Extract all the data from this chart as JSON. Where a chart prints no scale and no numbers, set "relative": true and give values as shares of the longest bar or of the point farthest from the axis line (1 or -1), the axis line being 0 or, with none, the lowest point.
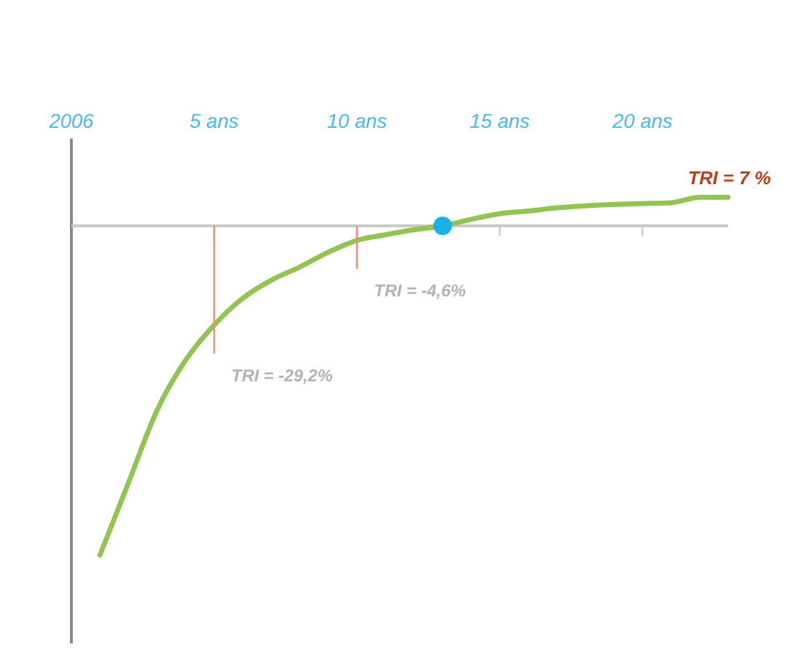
{
  "chart_data": {
    "type": "line",
    "relative": true,
    "categories": [
      "2006",
      null,
      null,
      null,
      null,
      "5 ans",
      null,
      null,
      null,
      null,
      "10 ans",
      null,
      null,
      null,
      null,
      "15 ans",
      null,
      null,
      null,
      null,
      "20 ans",
      null,
      null,
      null
    ],
    "series": [
      {
        "color": "#92c353",
        "values": [
          null,
          -1,
          -0.78,
          -0.56,
          -0.408,
          -0.301,
          -0.22,
          -0.165,
          -0.125,
          -0.08,
          -0.044,
          -0.027,
          -0.012,
          0,
          0.02,
          0.037,
          0.045,
          0.055,
          0.061,
          0.065,
          0.068,
          0.07,
          0.087,
          0.087
        ]
      },
      {
        "type": "scatter",
        "color": "#1ab0e8",
        "values": [
          null,
          null,
          null,
          null,
          null,
          null,
          null,
          null,
          null,
          null,
          null,
          null,
          null,
          0,
          null,
          null,
          null,
          null,
          null,
          null,
          null,
          null,
          null,
          null
        ]
      }
    ],
    "annotations": [
      {
        "text": "TRI = -29,2%",
        "x": "5 ans",
        "y": -0.301
      },
      {
        "text": "TRI = -4,6%",
        "x": "10 ans",
        "y": -0.044
      },
      {
        "text": "TRI = 7 %",
        "y": 0.087
      }
    ],
    "grid": false,
    "legend": false,
    "line_style": "solid"
  }
}
